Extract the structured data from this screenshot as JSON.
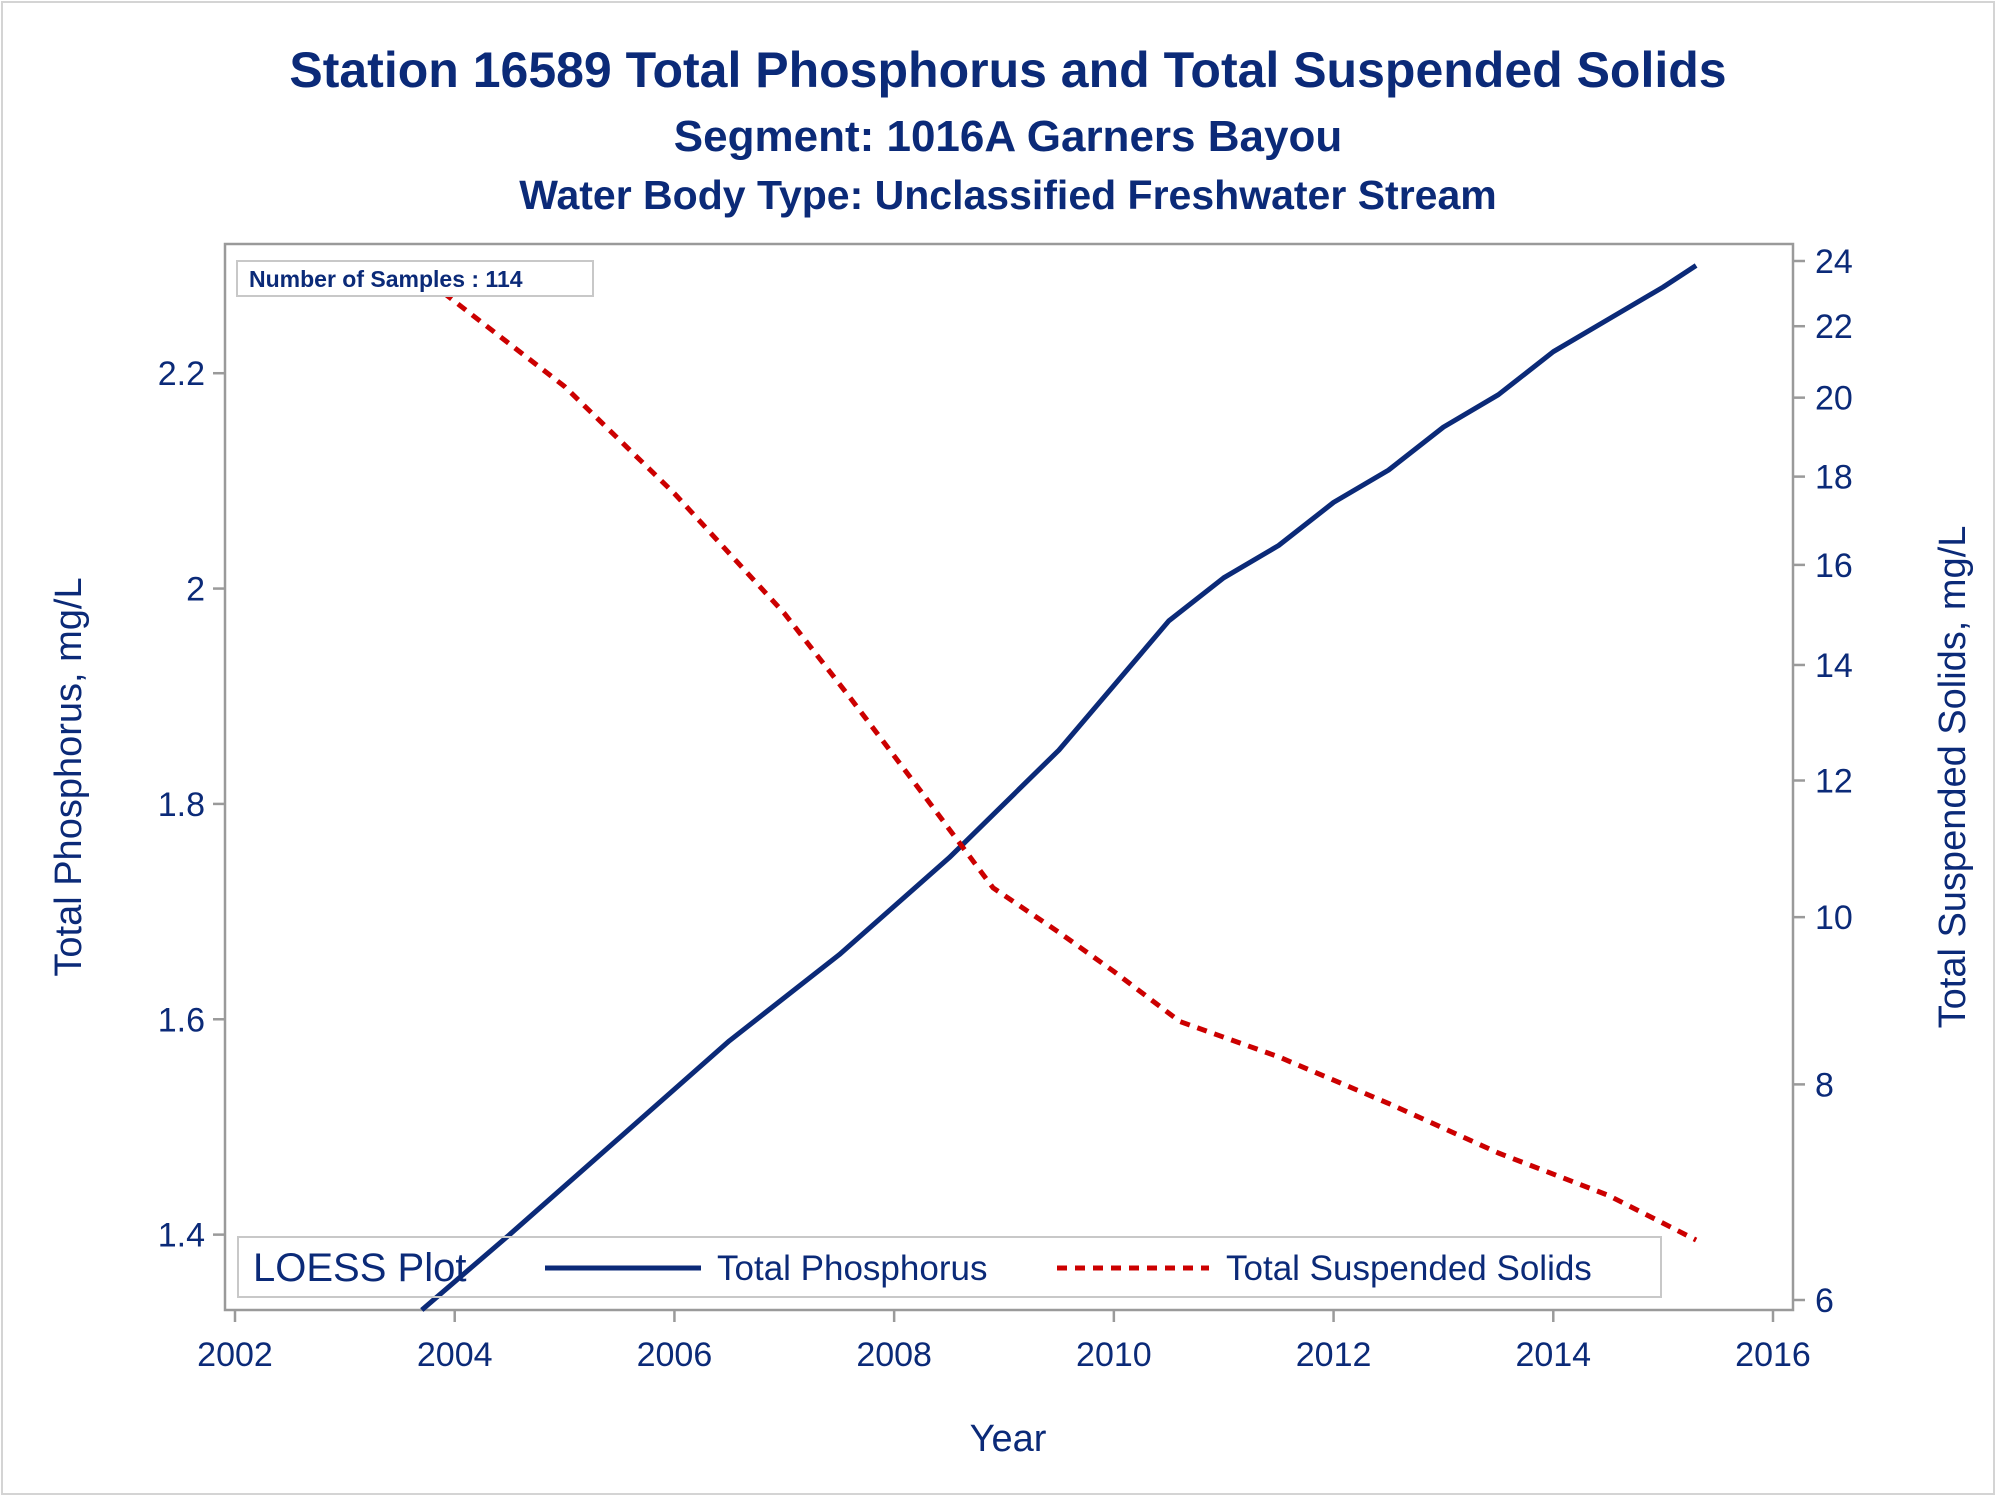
{
  "chart_data": {
    "type": "line",
    "title": "Station 16589  Total Phosphorus and Total Suspended Solids",
    "subtitle": "Segment: 1016A  Garners Bayou",
    "subtitle2": "Water Body Type: Unclassified Freshwater Stream",
    "xlabel": "Year",
    "ylabel_left": "Total Phosphorus, mg/L",
    "ylabel_right": "Total Suspended Solids, mg/L",
    "xlim": [
      2002,
      2016
    ],
    "x_ticks": [
      "2002",
      "2004",
      "2006",
      "2008",
      "2010",
      "2012",
      "2014",
      "2016"
    ],
    "ylim_left": [
      1.33,
      2.32
    ],
    "y_ticks_left": [
      "1.4",
      "1.6",
      "1.8",
      "2",
      "2.2"
    ],
    "ylim_right": [
      6,
      24
    ],
    "y_scale_right": "log",
    "y_ticks_right": [
      "6",
      "8",
      "10",
      "12",
      "14",
      "16",
      "18",
      "20",
      "22",
      "24"
    ],
    "annotation": "Number of Samples : 114",
    "legend": {
      "title": "LOESS Plot",
      "placement": "bottom-inside",
      "entries": [
        "Total Phosphorus",
        "Total Suspended Solids"
      ]
    },
    "series": [
      {
        "name": "Total Phosphorus",
        "axis": "left",
        "color": "#0b2a78",
        "style": "solid",
        "x": [
          2003.7,
          2004.5,
          2005.5,
          2006.5,
          2007.5,
          2008.5,
          2009.5,
          2010.0,
          2010.5,
          2011.0,
          2011.5,
          2012.0,
          2012.5,
          2013.0,
          2013.5,
          2014.0,
          2014.5,
          2015.0,
          2015.3
        ],
        "values": [
          1.33,
          1.4,
          1.49,
          1.58,
          1.66,
          1.75,
          1.85,
          1.91,
          1.97,
          2.01,
          2.04,
          2.08,
          2.11,
          2.15,
          2.18,
          2.22,
          2.25,
          2.28,
          2.3
        ]
      },
      {
        "name": "Total Suspended Solids",
        "axis": "right",
        "color": "#cc0000",
        "style": "dashed",
        "x": [
          2003.9,
          2005.0,
          2006.0,
          2007.0,
          2007.6,
          2008.3,
          2008.9,
          2009.5,
          2010.0,
          2010.6,
          2011.5,
          2012.5,
          2013.5,
          2014.5,
          2015.3
        ],
        "values": [
          23.0,
          20.3,
          17.6,
          15.0,
          13.4,
          11.7,
          10.4,
          9.8,
          9.3,
          8.7,
          8.3,
          7.8,
          7.3,
          6.9,
          6.5
        ]
      }
    ]
  }
}
